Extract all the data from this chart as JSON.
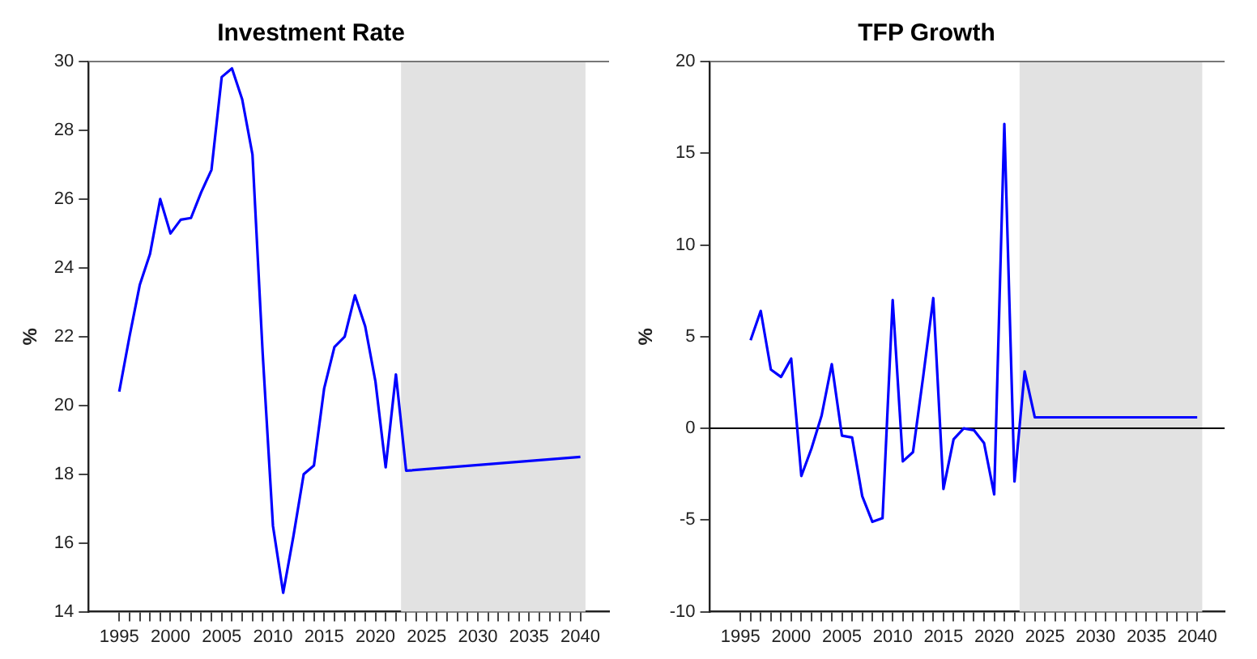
{
  "chart_data": [
    {
      "type": "line",
      "title": "Investment Rate",
      "ylabel": "%",
      "x": [
        1995,
        1996,
        1997,
        1998,
        1999,
        2000,
        2001,
        2002,
        2003,
        2004,
        2005,
        2006,
        2007,
        2008,
        2009,
        2010,
        2011,
        2012,
        2013,
        2014,
        2015,
        2016,
        2017,
        2018,
        2019,
        2020,
        2021,
        2022,
        2023,
        2040
      ],
      "series": [
        {
          "color": "#0000ff",
          "values": [
            20.4,
            22.0,
            23.5,
            24.4,
            26.0,
            25.0,
            25.4,
            25.45,
            26.2,
            26.85,
            29.55,
            29.8,
            28.9,
            27.3,
            21.5,
            16.5,
            14.55,
            16.2,
            18.0,
            18.25,
            20.5,
            21.7,
            22.0,
            23.2,
            22.3,
            20.7,
            18.2,
            20.9,
            18.1,
            18.5
          ]
        }
      ],
      "xlim": [
        1992,
        2042.8
      ],
      "ylim": [
        14,
        30
      ],
      "yticks": [
        14,
        16,
        18,
        20,
        22,
        24,
        26,
        28,
        30
      ],
      "xticks": [
        1995,
        {
          "value": 1996,
          "label": null
        },
        {
          "value": 1997,
          "label": null
        },
        {
          "value": 1998,
          "label": null
        },
        {
          "value": 1999,
          "label": null
        },
        2000,
        {
          "value": 2001,
          "label": null
        },
        {
          "value": 2002,
          "label": null
        },
        {
          "value": 2003,
          "label": null
        },
        {
          "value": 2004,
          "label": null
        },
        2005,
        {
          "value": 2006,
          "label": null
        },
        {
          "value": 2007,
          "label": null
        },
        {
          "value": 2008,
          "label": null
        },
        {
          "value": 2009,
          "label": null
        },
        2010,
        {
          "value": 2011,
          "label": null
        },
        {
          "value": 2012,
          "label": null
        },
        {
          "value": 2013,
          "label": null
        },
        {
          "value": 2014,
          "label": null
        },
        2015,
        {
          "value": 2016,
          "label": null
        },
        {
          "value": 2017,
          "label": null
        },
        {
          "value": 2018,
          "label": null
        },
        {
          "value": 2019,
          "label": null
        },
        2020,
        {
          "value": 2021,
          "label": null
        },
        {
          "value": 2022,
          "label": null
        },
        {
          "value": 2023,
          "label": null
        },
        {
          "value": 2024,
          "label": null
        },
        2025,
        {
          "value": 2026,
          "label": null
        },
        {
          "value": 2027,
          "label": null
        },
        {
          "value": 2028,
          "label": null
        },
        {
          "value": 2029,
          "label": null
        },
        2030,
        {
          "value": 2031,
          "label": null
        },
        {
          "value": 2032,
          "label": null
        },
        {
          "value": 2033,
          "label": null
        },
        {
          "value": 2034,
          "label": null
        },
        2035,
        {
          "value": 2036,
          "label": null
        },
        {
          "value": 2037,
          "label": null
        },
        {
          "value": 2038,
          "label": null
        },
        {
          "value": 2039,
          "label": null
        },
        2040
      ],
      "bands": [
        {
          "axis": "x",
          "from": 2022.5,
          "to": 2040.5,
          "color": "#e2e2e2"
        }
      ],
      "grid": false,
      "legend": false
    },
    {
      "type": "line",
      "title": "TFP Growth",
      "ylabel": "%",
      "x": [
        1996,
        1997,
        1998,
        1999,
        2000,
        2001,
        2002,
        2003,
        2004,
        2005,
        2006,
        2007,
        2008,
        2009,
        2010,
        2011,
        2012,
        2013,
        2014,
        2015,
        2016,
        2017,
        2018,
        2019,
        2020,
        2021,
        2022,
        2023,
        2024,
        2040
      ],
      "series": [
        {
          "color": "#0000ff",
          "values": [
            4.8,
            6.4,
            3.2,
            2.8,
            3.8,
            -2.6,
            -1.1,
            0.7,
            3.5,
            -0.4,
            -0.5,
            -3.7,
            -5.1,
            -4.9,
            7.0,
            -1.8,
            -1.3,
            2.8,
            7.1,
            -3.3,
            -0.6,
            0,
            -0.1,
            -0.8,
            -3.6,
            16.6,
            -2.9,
            3.1,
            0.6,
            0.6
          ]
        }
      ],
      "xlim": [
        1992,
        2042.7
      ],
      "ylim": [
        -10,
        20
      ],
      "yticks": [
        -10,
        -5,
        0,
        5,
        10,
        15,
        20
      ],
      "xticks": [
        1995,
        {
          "value": 1996,
          "label": null
        },
        {
          "value": 1997,
          "label": null
        },
        {
          "value": 1998,
          "label": null
        },
        {
          "value": 1999,
          "label": null
        },
        2000,
        {
          "value": 2001,
          "label": null
        },
        {
          "value": 2002,
          "label": null
        },
        {
          "value": 2003,
          "label": null
        },
        {
          "value": 2004,
          "label": null
        },
        2005,
        {
          "value": 2006,
          "label": null
        },
        {
          "value": 2007,
          "label": null
        },
        {
          "value": 2008,
          "label": null
        },
        {
          "value": 2009,
          "label": null
        },
        2010,
        {
          "value": 2011,
          "label": null
        },
        {
          "value": 2012,
          "label": null
        },
        {
          "value": 2013,
          "label": null
        },
        {
          "value": 2014,
          "label": null
        },
        2015,
        {
          "value": 2016,
          "label": null
        },
        {
          "value": 2017,
          "label": null
        },
        {
          "value": 2018,
          "label": null
        },
        {
          "value": 2019,
          "label": null
        },
        2020,
        {
          "value": 2021,
          "label": null
        },
        {
          "value": 2022,
          "label": null
        },
        {
          "value": 2023,
          "label": null
        },
        {
          "value": 2024,
          "label": null
        },
        2025,
        {
          "value": 2026,
          "label": null
        },
        {
          "value": 2027,
          "label": null
        },
        {
          "value": 2028,
          "label": null
        },
        {
          "value": 2029,
          "label": null
        },
        2030,
        {
          "value": 2031,
          "label": null
        },
        {
          "value": 2032,
          "label": null
        },
        {
          "value": 2033,
          "label": null
        },
        {
          "value": 2034,
          "label": null
        },
        2035,
        {
          "value": 2036,
          "label": null
        },
        {
          "value": 2037,
          "label": null
        },
        {
          "value": 2038,
          "label": null
        },
        {
          "value": 2039,
          "label": null
        },
        2040
      ],
      "bands": [
        {
          "axis": "x",
          "from": 2022.5,
          "to": 2040.5,
          "color": "#e2e2e2"
        }
      ],
      "ref_lines": [
        {
          "axis": "y",
          "value": 0,
          "color": "#000000"
        }
      ],
      "grid": false,
      "legend": false
    }
  ]
}
